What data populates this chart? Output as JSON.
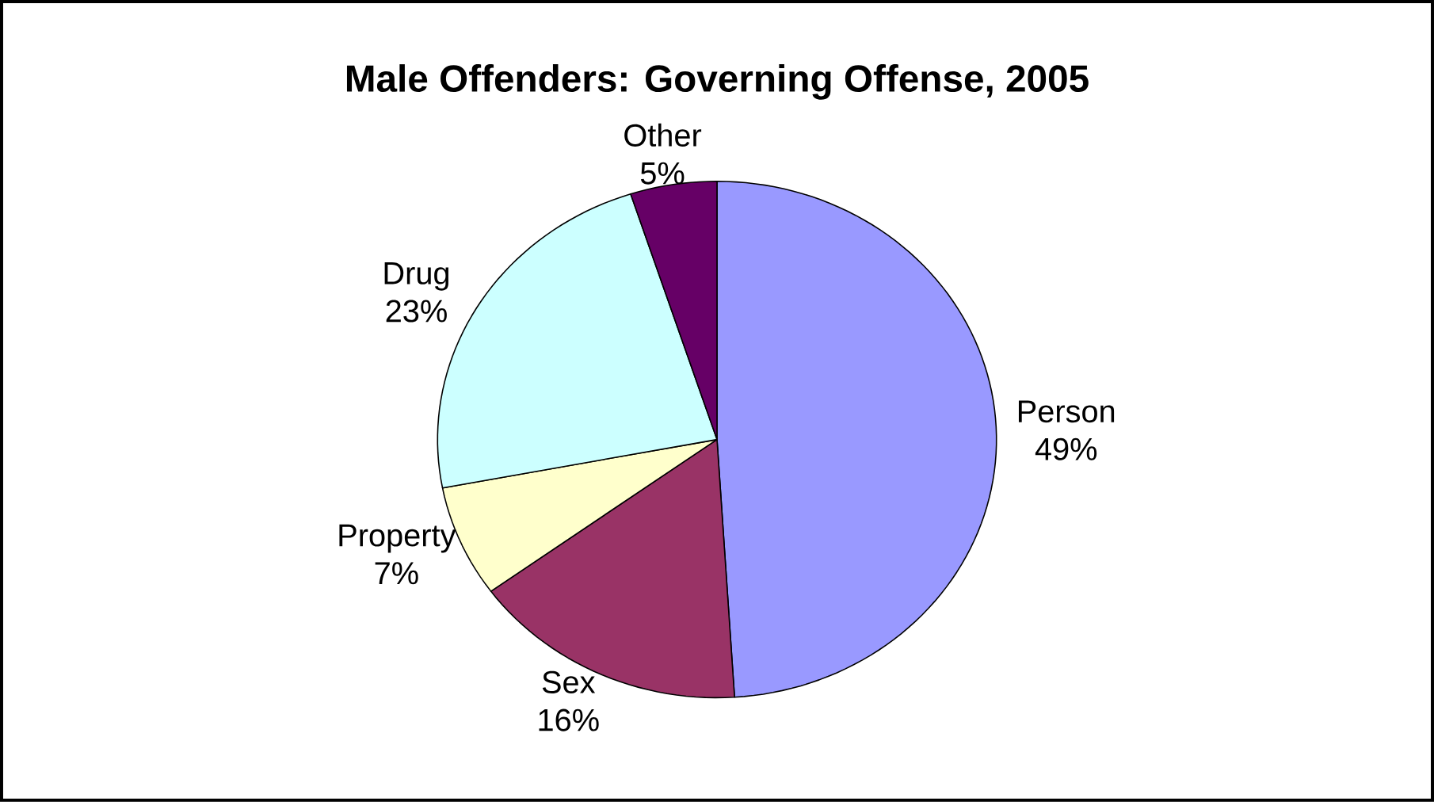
{
  "chart_data": {
    "type": "pie",
    "title": "Male Offenders: Governing Offense, 2005",
    "categories": [
      "Person",
      "Sex",
      "Property",
      "Drug",
      "Other"
    ],
    "values": [
      49,
      16,
      7,
      23,
      5
    ],
    "value_labels": [
      "49%",
      "16%",
      "7%",
      "23%",
      "5%"
    ],
    "colors": [
      "#9999ff",
      "#993366",
      "#ffffcc",
      "#ccffff",
      "#660066"
    ]
  }
}
